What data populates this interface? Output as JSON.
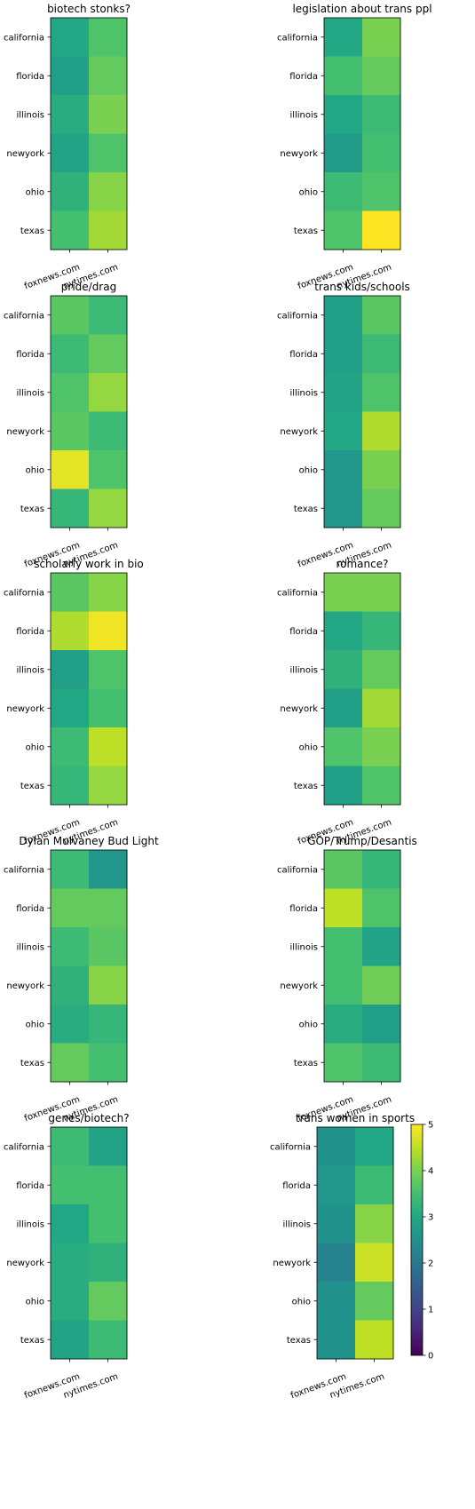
{
  "figure": {
    "rows": [
      "california",
      "florida",
      "illinois",
      "newyork",
      "ohio",
      "texas"
    ],
    "columns": [
      "foxnews.com",
      "nytimes.com"
    ]
  },
  "chart_data": [
    {
      "type": "heatmap",
      "title": "biotech stonks?",
      "rows": [
        "california",
        "florida",
        "illinois",
        "newyork",
        "ohio",
        "texas"
      ],
      "columns": [
        "foxnews.com",
        "nytimes.com"
      ],
      "values": [
        [
          3.0,
          3.6
        ],
        [
          2.8,
          3.8
        ],
        [
          3.1,
          4.0
        ],
        [
          2.9,
          3.6
        ],
        [
          3.2,
          4.1
        ],
        [
          3.5,
          4.3
        ]
      ]
    },
    {
      "type": "heatmap",
      "title": "legislation about trans ppl",
      "rows": [
        "california",
        "florida",
        "illinois",
        "newyork",
        "ohio",
        "texas"
      ],
      "columns": [
        "foxnews.com",
        "nytimes.com"
      ],
      "values": [
        [
          3.0,
          4.0
        ],
        [
          3.5,
          3.8
        ],
        [
          3.0,
          3.4
        ],
        [
          2.7,
          3.5
        ],
        [
          3.4,
          3.6
        ],
        [
          3.6,
          5.0
        ]
      ]
    },
    {
      "type": "heatmap",
      "title": "pride/drag",
      "rows": [
        "california",
        "florida",
        "illinois",
        "newyork",
        "ohio",
        "texas"
      ],
      "columns": [
        "foxnews.com",
        "nytimes.com"
      ],
      "values": [
        [
          3.7,
          3.4
        ],
        [
          3.4,
          3.8
        ],
        [
          3.6,
          4.2
        ],
        [
          3.7,
          3.4
        ],
        [
          4.8,
          3.6
        ],
        [
          3.3,
          4.2
        ]
      ]
    },
    {
      "type": "heatmap",
      "title": "trans kids/schools",
      "rows": [
        "california",
        "florida",
        "illinois",
        "newyork",
        "ohio",
        "texas"
      ],
      "columns": [
        "foxnews.com",
        "nytimes.com"
      ],
      "values": [
        [
          2.8,
          3.7
        ],
        [
          2.8,
          3.4
        ],
        [
          2.9,
          3.6
        ],
        [
          3.0,
          4.4
        ],
        [
          2.6,
          4.0
        ],
        [
          2.6,
          3.8
        ]
      ]
    },
    {
      "type": "heatmap",
      "title": "scholarly work in bio",
      "rows": [
        "california",
        "florida",
        "illinois",
        "newyork",
        "ohio",
        "texas"
      ],
      "columns": [
        "foxnews.com",
        "nytimes.com"
      ],
      "values": [
        [
          3.7,
          4.1
        ],
        [
          4.4,
          4.9
        ],
        [
          2.8,
          3.6
        ],
        [
          3.0,
          3.5
        ],
        [
          3.4,
          4.5
        ],
        [
          3.3,
          4.2
        ]
      ]
    },
    {
      "type": "heatmap",
      "title": "romance?",
      "rows": [
        "california",
        "florida",
        "illinois",
        "newyork",
        "ohio",
        "texas"
      ],
      "columns": [
        "foxnews.com",
        "nytimes.com"
      ],
      "values": [
        [
          4.0,
          4.0
        ],
        [
          3.0,
          3.3
        ],
        [
          3.2,
          3.8
        ],
        [
          2.8,
          4.3
        ],
        [
          3.6,
          4.0
        ],
        [
          2.8,
          3.6
        ]
      ]
    },
    {
      "type": "heatmap",
      "title": "Dylan Mulvaney Bud Light",
      "rows": [
        "california",
        "florida",
        "illinois",
        "newyork",
        "ohio",
        "texas"
      ],
      "columns": [
        "foxnews.com",
        "nytimes.com"
      ],
      "values": [
        [
          3.4,
          2.6
        ],
        [
          3.8,
          3.8
        ],
        [
          3.4,
          3.7
        ],
        [
          3.2,
          4.1
        ],
        [
          3.1,
          3.3
        ],
        [
          3.8,
          3.5
        ]
      ]
    },
    {
      "type": "heatmap",
      "title": "GOP/Trump/Desantis",
      "rows": [
        "california",
        "florida",
        "illinois",
        "newyork",
        "ohio",
        "texas"
      ],
      "columns": [
        "foxnews.com",
        "nytimes.com"
      ],
      "values": [
        [
          3.7,
          3.3
        ],
        [
          4.5,
          3.6
        ],
        [
          3.5,
          2.9
        ],
        [
          3.5,
          3.9
        ],
        [
          3.1,
          2.8
        ],
        [
          3.6,
          3.4
        ]
      ]
    },
    {
      "type": "heatmap",
      "title": "genes/biotech?",
      "rows": [
        "california",
        "florida",
        "illinois",
        "newyork",
        "ohio",
        "texas"
      ],
      "columns": [
        "foxnews.com",
        "nytimes.com"
      ],
      "values": [
        [
          3.4,
          2.9
        ],
        [
          3.5,
          3.5
        ],
        [
          3.0,
          3.5
        ],
        [
          3.1,
          3.2
        ],
        [
          3.1,
          3.8
        ],
        [
          2.9,
          3.4
        ]
      ]
    },
    {
      "type": "heatmap",
      "title": "trans women in sports",
      "rows": [
        "california",
        "florida",
        "illinois",
        "newyork",
        "ohio",
        "texas"
      ],
      "columns": [
        "foxnews.com",
        "nytimes.com"
      ],
      "values": [
        [
          2.5,
          3.0
        ],
        [
          2.6,
          3.4
        ],
        [
          2.5,
          4.1
        ],
        [
          2.2,
          4.6
        ],
        [
          2.5,
          3.8
        ],
        [
          2.5,
          4.5
        ]
      ]
    }
  ],
  "colorbar": {
    "colormap": "viridis",
    "range": [
      0,
      5
    ],
    "ticks": [
      "0",
      "1",
      "2",
      "3",
      "4",
      "5"
    ]
  }
}
